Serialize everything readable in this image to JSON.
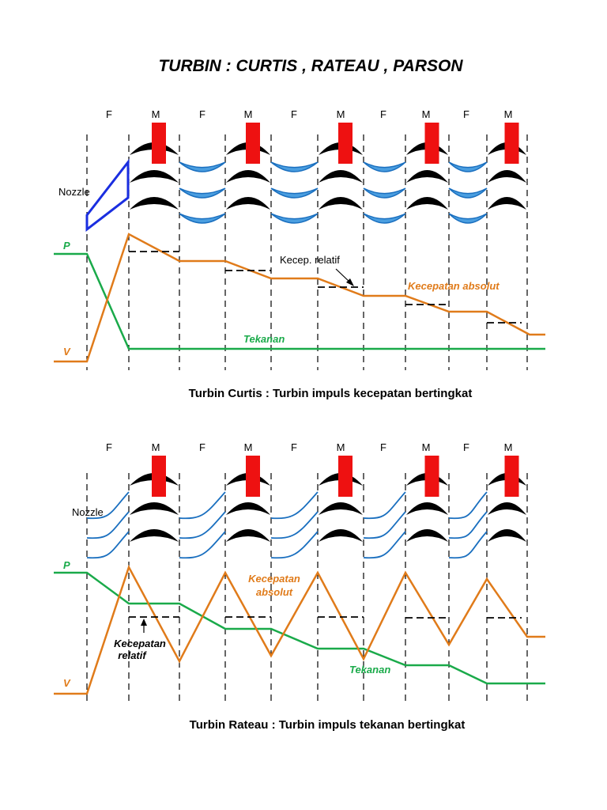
{
  "title": "TURBIN : CURTIS , RATEAU , PARSON",
  "colors": {
    "pressure": "#1aaa4a",
    "velocity": "#e07b1a",
    "nozzle_outline": "#1a2ee0",
    "fixed_blade": "#1a6fbf",
    "fixed_blade_light": "#4a9ee0",
    "moving_blade": "#000000",
    "marker": "#ee1111"
  },
  "curtis": {
    "stage_labels": [
      "F",
      "M",
      "F",
      "M",
      "F",
      "M",
      "F",
      "M",
      "F",
      "M"
    ],
    "nozzle_label": "Nozzle",
    "p_label": "P",
    "v_label": "V",
    "relative_label": "Kecep. relatif",
    "absolute_label": "Kecepatan absolut",
    "pressure_label": "Tekanan",
    "caption": "Turbin Curtis : Turbin impuls kecepatan bertingkat"
  },
  "rateau": {
    "stage_labels": [
      "F",
      "M",
      "F",
      "M",
      "F",
      "M",
      "F",
      "M",
      "F",
      "M"
    ],
    "nozzle_label": "Nozzle",
    "p_label": "P",
    "v_label": "V",
    "relative_label_1": "Kecepatan",
    "relative_label_2": "relatif",
    "absolute_label_1": "Kecepatan",
    "absolute_label_2": "absolut",
    "pressure_label": "Tekanan",
    "caption": "Turbin Rateau : Turbin impuls tekanan bertingkat"
  }
}
